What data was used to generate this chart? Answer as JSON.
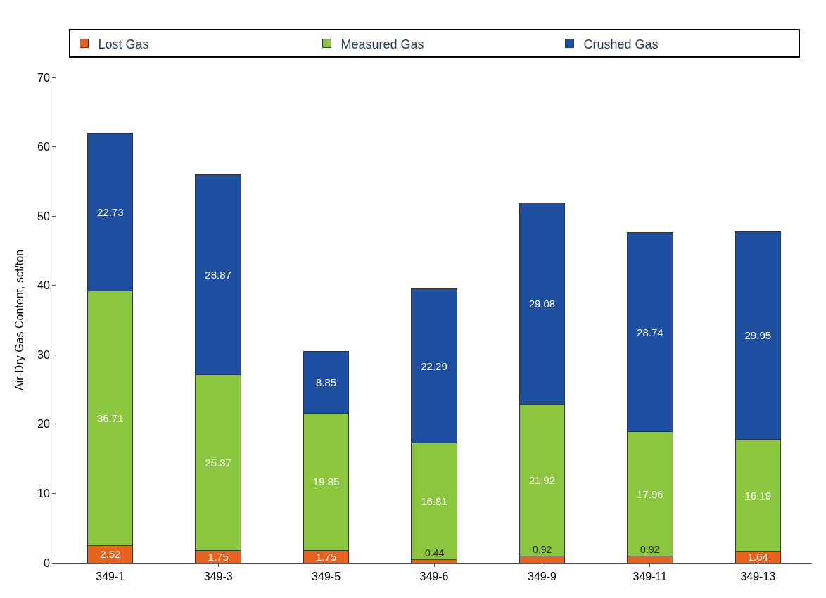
{
  "chart_data": {
    "type": "bar",
    "stacked": true,
    "ylabel": "Air-Dry Gas Content, scf/ton",
    "categories": [
      "349-1",
      "349-3",
      "349-5",
      "349-6",
      "349-9",
      "349-11",
      "349-13"
    ],
    "series": [
      {
        "name": "Lost Gas",
        "color": "#e8641e",
        "values": [
          2.52,
          1.75,
          1.75,
          0.44,
          0.92,
          0.92,
          1.64
        ]
      },
      {
        "name": "Measured Gas",
        "color": "#8cc63f",
        "values": [
          36.71,
          25.37,
          19.85,
          16.81,
          21.92,
          17.96,
          16.19
        ]
      },
      {
        "name": "Crushed Gas",
        "color": "#1f4fa0",
        "values": [
          22.73,
          28.87,
          8.85,
          22.29,
          29.08,
          28.74,
          29.95
        ]
      }
    ],
    "ylim": [
      0,
      70
    ],
    "yticks": [
      0,
      10,
      20,
      30,
      40,
      50,
      60,
      70
    ],
    "data_labels": true,
    "legend": "top"
  }
}
